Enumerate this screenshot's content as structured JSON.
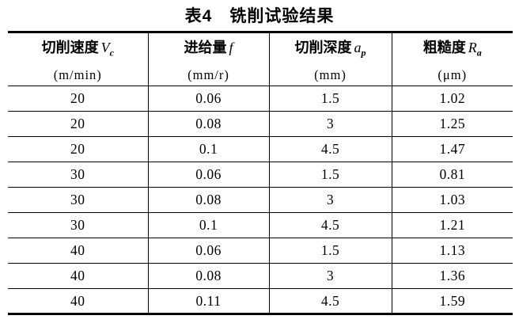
{
  "title": "表4　铣削试验结果",
  "table": {
    "columns": [
      {
        "name": "切削速度",
        "symbol": "V",
        "sub": "c",
        "unit": "(m/min)"
      },
      {
        "name": "进给量",
        "symbol": "f",
        "sub": "",
        "unit": "(mm/r)"
      },
      {
        "name": "切削深度",
        "symbol": "a",
        "sub": "p",
        "unit": "(mm)"
      },
      {
        "name": "粗糙度",
        "symbol": "R",
        "sub": "a",
        "unit": "(μm)"
      }
    ],
    "rows": [
      [
        "20",
        "0.06",
        "1.5",
        "1.02"
      ],
      [
        "20",
        "0.08",
        "3",
        "1.25"
      ],
      [
        "20",
        "0.1",
        "4.5",
        "1.47"
      ],
      [
        "30",
        "0.06",
        "1.5",
        "0.81"
      ],
      [
        "30",
        "0.08",
        "3",
        "1.03"
      ],
      [
        "30",
        "0.1",
        "4.5",
        "1.21"
      ],
      [
        "40",
        "0.06",
        "1.5",
        "1.13"
      ],
      [
        "40",
        "0.08",
        "3",
        "1.36"
      ],
      [
        "40",
        "0.11",
        "4.5",
        "1.59"
      ]
    ]
  }
}
